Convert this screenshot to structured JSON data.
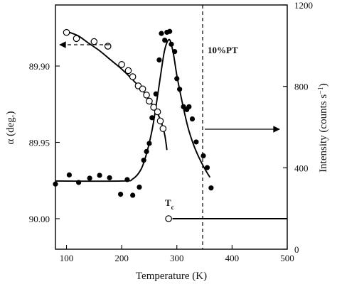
{
  "chart_data": {
    "type": "scatter",
    "title": "",
    "annotation": "10%PT",
    "tc_label": "T",
    "tc_subscript": "c",
    "xlabel": "Temperature (K)",
    "ylabel_left": "α (deg.)",
    "ylabel_right": "Intensity (counts s",
    "ylabel_right_exp": "−1",
    "ylabel_right_close": ")",
    "xlim": [
      80,
      500
    ],
    "x_ticks": [
      100,
      200,
      300,
      400,
      500
    ],
    "x_tick_labels": [
      "100",
      "200",
      "300",
      "400",
      "500"
    ],
    "ylim_left": [
      90.02,
      89.86
    ],
    "y_left_ticks": [
      89.9,
      89.95,
      90.0
    ],
    "y_left_tick_labels": [
      "89.90",
      "89.95",
      "90.00"
    ],
    "ylim_right": [
      0,
      1200
    ],
    "y_right_ticks": [
      0,
      400,
      800,
      1200
    ],
    "y_right_tick_labels": [
      "0",
      "400",
      "800",
      "1200"
    ],
    "tc": 285,
    "alpha_series": {
      "marker": "open-circle",
      "axis": "left",
      "x": [
        100,
        118,
        150,
        175,
        200,
        212,
        220,
        230,
        238,
        245,
        250,
        258,
        265,
        270,
        275,
        285
      ],
      "y": [
        89.878,
        89.882,
        89.884,
        89.887,
        89.899,
        89.903,
        89.907,
        89.913,
        89.915,
        89.919,
        89.923,
        89.927,
        89.93,
        89.936,
        89.941,
        90.0
      ]
    },
    "alpha_fit": {
      "axis": "left",
      "x": [
        97,
        120,
        140,
        160,
        180,
        200,
        220,
        240,
        255,
        265,
        272,
        278,
        282
      ],
      "y": [
        89.877,
        89.88,
        89.885,
        89.89,
        89.896,
        89.902,
        89.909,
        89.917,
        89.925,
        89.931,
        89.937,
        89.945,
        89.955
      ]
    },
    "alpha_high_t_line": {
      "axis": "left",
      "x": [
        292,
        500
      ],
      "y": [
        90.0,
        90.0
      ]
    },
    "intensity_series": {
      "marker": "filled-circle",
      "axis": "right",
      "x": [
        80,
        105,
        122,
        142,
        160,
        178,
        198,
        210,
        220,
        232,
        240,
        245,
        250,
        255,
        262,
        268,
        272,
        278,
        282,
        287,
        290,
        296,
        300,
        305,
        312,
        318,
        322,
        328,
        335,
        348,
        355,
        362
      ],
      "y": [
        320,
        365,
        328,
        349,
        363,
        351,
        270,
        342,
        265,
        305,
        437,
        480,
        520,
        646,
        763,
        930,
        1060,
        1027,
        1066,
        1070,
        1007,
        971,
        838,
        786,
        700,
        686,
        700,
        640,
        527,
        459,
        401,
        301
      ]
    },
    "intensity_fit": {
      "axis": "right",
      "x": [
        80,
        200,
        220,
        235,
        245,
        255,
        262,
        270,
        277,
        283,
        288,
        294,
        300,
        310,
        320,
        330,
        340,
        350,
        360
      ],
      "y": [
        335,
        335,
        345,
        392,
        469,
        584,
        698,
        845,
        967,
        1021,
        1024,
        956,
        854,
        718,
        600,
        515,
        451,
        398,
        353
      ]
    }
  }
}
